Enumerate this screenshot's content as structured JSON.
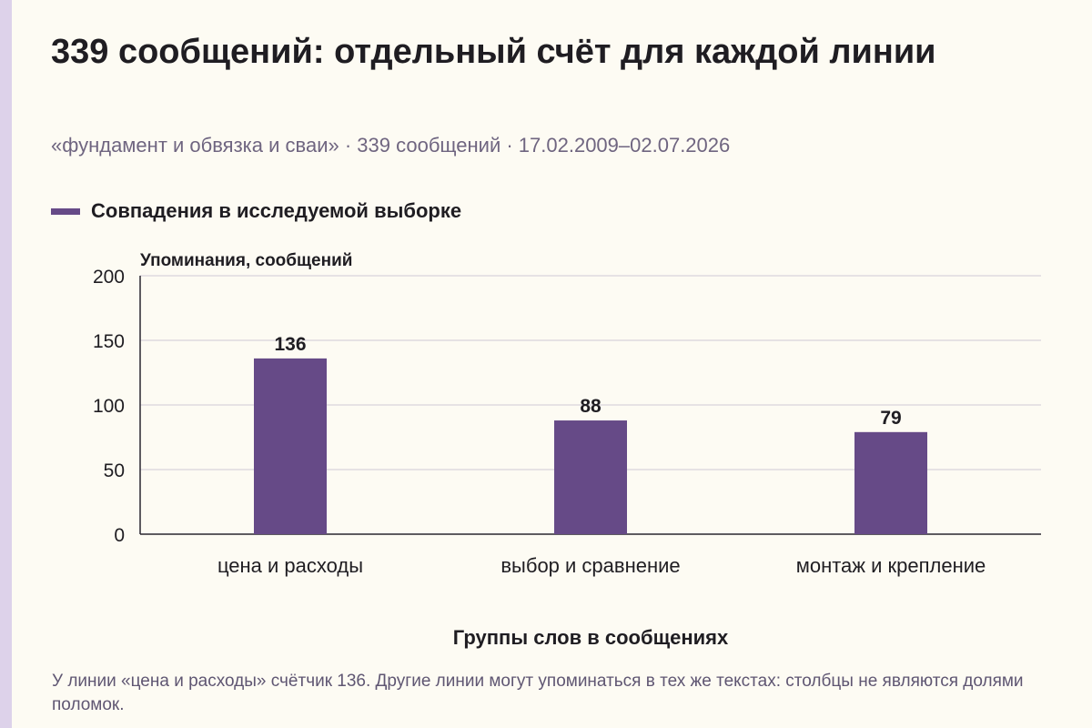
{
  "header": {
    "title": "339 сообщений: отдельный счёт для каждой линии",
    "subtitle": "«фундамент и обвязка и сваи» · 339 сообщений · 17.02.2009–02.07.2026"
  },
  "legend": {
    "label": "Совпадения в исследуемой выборке"
  },
  "footnote": "У линии «цена и расходы» счётчик 136. Другие линии могут упоминаться в тех же текстах: столбцы не являются долями поломок.",
  "chart_data": {
    "type": "bar",
    "categories": [
      "цена и расходы",
      "выбор и сравнение",
      "монтаж и крепление"
    ],
    "series": [
      {
        "name": "Совпадения в исследуемой выборке",
        "values": [
          136,
          88,
          79
        ],
        "color": "#664a87"
      }
    ],
    "ylabel": "Упоминания, сообщений",
    "xlabel": "Группы слов в сообщениях",
    "ylim": [
      0,
      200
    ],
    "yticks": [
      0,
      50,
      100,
      150,
      200
    ],
    "grid": true,
    "data_labels": true,
    "legend_position": "top-left"
  }
}
